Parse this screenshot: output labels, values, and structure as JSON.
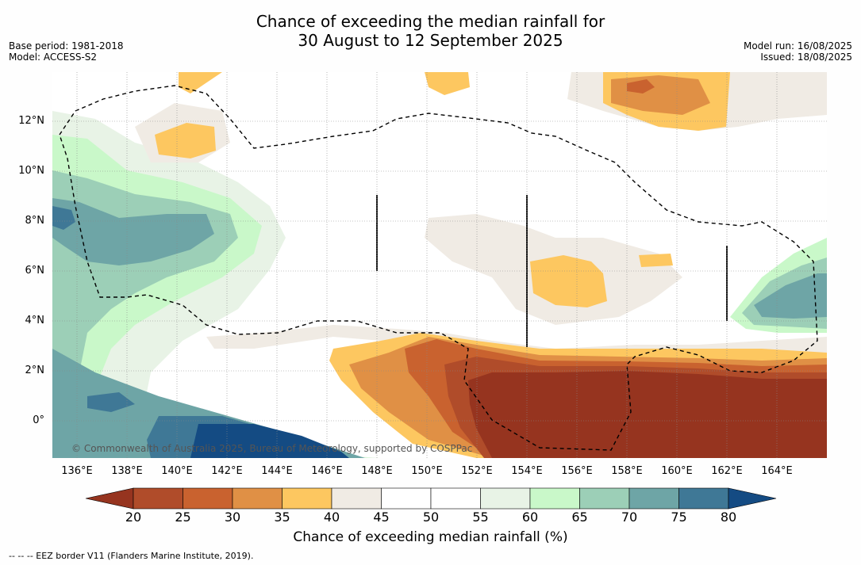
{
  "header": {
    "title_line1": "Chance of exceeding the median rainfall for",
    "title_line2": "30 August to 12 September 2025",
    "base_period": "Base period: 1981-2018",
    "model": "Model: ACCESS-S2",
    "model_run": "Model run: 16/08/2025",
    "issued": "Issued: 18/08/2025"
  },
  "map": {
    "x_ticks": [
      "136°E",
      "138°E",
      "140°E",
      "142°E",
      "144°E",
      "146°E",
      "148°E",
      "150°E",
      "152°E",
      "154°E",
      "156°E",
      "158°E",
      "160°E",
      "162°E",
      "164°E"
    ],
    "y_ticks": [
      "12°N",
      "10°N",
      "8°N",
      "6°N",
      "4°N",
      "2°N",
      "0°"
    ],
    "copyright": "© Commonwealth of Australia 2025, Bureau of Meteorology, supported by COSPPac",
    "colors": {
      "c20": "#96341f",
      "c25": "#b04c2a",
      "c30": "#c9622f",
      "c35": "#e09045",
      "c40": "#fdc760",
      "c45": "#f0ebe4",
      "c50": "#ffffff",
      "c55": "#ffffff",
      "c60": "#e8f3e6",
      "c65": "#c9f8c9",
      "c70": "#9ccfb7",
      "c75": "#6ea5a6",
      "c80": "#3f7896",
      "c85": "#144b83"
    }
  },
  "colorbar": {
    "labels": [
      "20",
      "25",
      "30",
      "35",
      "40",
      "45",
      "50",
      "55",
      "60",
      "65",
      "70",
      "75",
      "80"
    ],
    "title": "Chance of exceeding median rainfall (%)"
  },
  "footer": {
    "eez_note": "--  --  -- EEZ border V11 (Flanders Marine Institute, 2019)."
  }
}
